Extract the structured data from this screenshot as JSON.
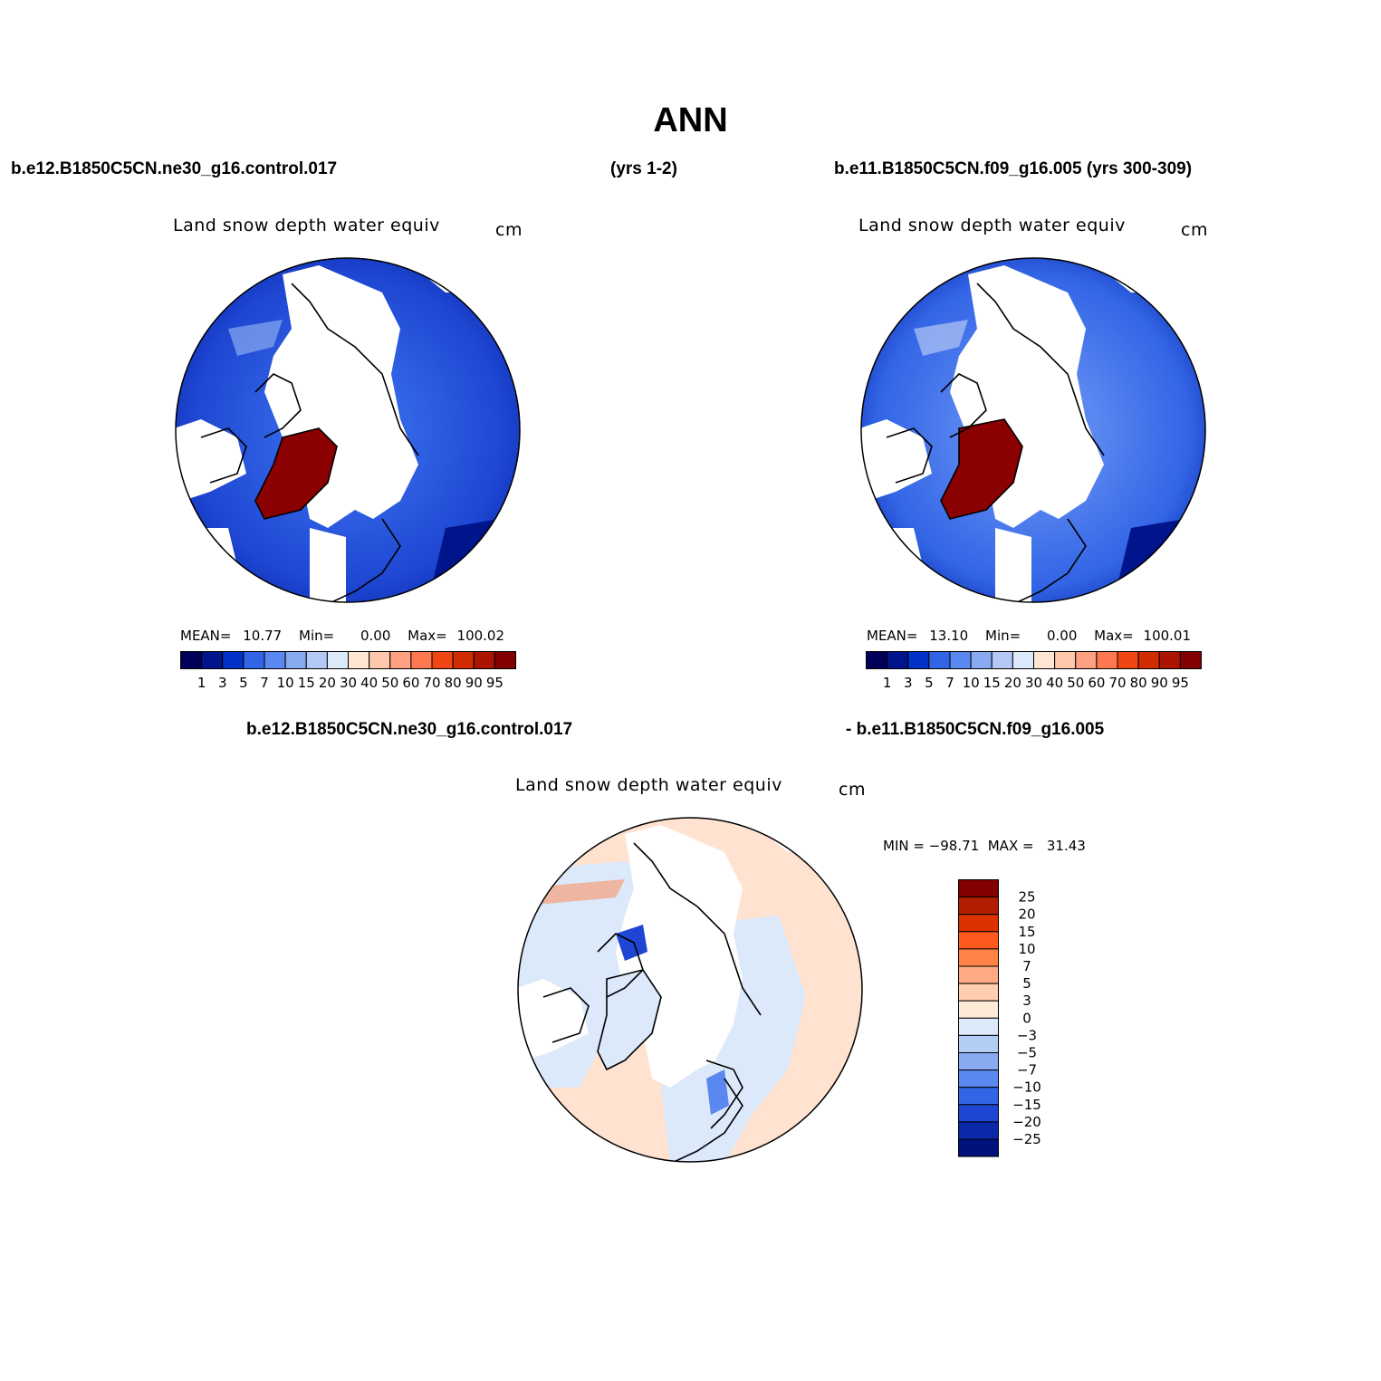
{
  "main_title": "ANN",
  "panels": [
    {
      "case_label": "b.e12.B1850C5CN.ne30_g16.control.017",
      "years_label": "(yrs 1-2)",
      "variable": "Land snow depth water equiv",
      "units": "cm",
      "stats": {
        "mean_label": "MEAN=",
        "mean": "10.77",
        "min_label": "Min=",
        "min": "0.00",
        "max_label": "Max=",
        "max": "100.02"
      }
    },
    {
      "case_label": "b.e11.B1850C5CN.f09_g16.005 (yrs 300-309)",
      "variable": "Land snow depth water equiv",
      "units": "cm",
      "stats": {
        "mean_label": "MEAN=",
        "mean": "13.10",
        "min_label": "Min=",
        "min": "0.00",
        "max_label": "Max=",
        "max": "100.01"
      }
    }
  ],
  "difference": {
    "case_a": "b.e12.B1850C5CN.ne30_g16.control.017",
    "case_b": "- b.e11.B1850C5CN.f09_g16.005",
    "variable": "Land snow depth water equiv",
    "units": "cm",
    "minmax": "MIN = −98.71  MAX =   31.43"
  },
  "abs_colorbar": {
    "colors": [
      "#00005a",
      "#00148c",
      "#0032c8",
      "#3264e6",
      "#5a87f0",
      "#87aaf0",
      "#b4c8f5",
      "#dce9fa",
      "#ffe6d2",
      "#ffc8aa",
      "#ffa082",
      "#ff7850",
      "#f04614",
      "#d22d00",
      "#aa1400",
      "#820000"
    ],
    "labels": [
      "1",
      "3",
      "5",
      "7",
      "10",
      "15",
      "20",
      "30",
      "40",
      "50",
      "60",
      "70",
      "80",
      "90",
      "95"
    ]
  },
  "diff_colorbar": {
    "colors_top_to_bottom": [
      "#820000",
      "#b41e00",
      "#dc3200",
      "#ff5a1e",
      "#ff8246",
      "#ffaa82",
      "#ffcdaf",
      "#ffe9d7",
      "#dce9fa",
      "#b4cdf5",
      "#87aaf0",
      "#5a87f0",
      "#3264e6",
      "#1e46d2",
      "#0a28aa",
      "#00137d"
    ],
    "labels_top_to_bottom": [
      "25",
      "20",
      "15",
      "10",
      "7",
      "5",
      "3",
      "0",
      "−3",
      "−5",
      "−7",
      "−10",
      "−15",
      "−20",
      "−25"
    ]
  }
}
